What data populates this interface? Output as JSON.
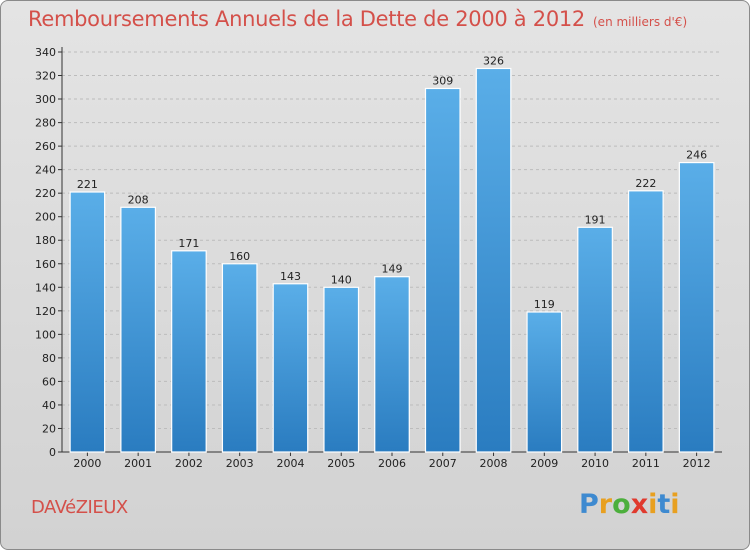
{
  "title": "Remboursements Annuels de la Dette de 2000 à 2012",
  "unit_note": "(en milliers d'€)",
  "commune": "DAVéZIEUX",
  "logo": {
    "p": "P",
    "r": "r",
    "o": "o",
    "x": "x",
    "i": "i",
    "t": "t",
    "i2": "i"
  },
  "colors": {
    "title": "#d4504a",
    "bar_top": "#5aaee8",
    "bar_bottom": "#2a7cc0",
    "background": "#dcdcdc"
  },
  "chart_data": {
    "type": "bar",
    "categories": [
      "2000",
      "2001",
      "2002",
      "2003",
      "2004",
      "2005",
      "2006",
      "2007",
      "2008",
      "2009",
      "2010",
      "2011",
      "2012"
    ],
    "values": [
      221,
      208,
      171,
      160,
      143,
      140,
      149,
      309,
      326,
      119,
      191,
      222,
      246
    ],
    "ylim": [
      0,
      340
    ],
    "yticks": [
      0,
      20,
      40,
      60,
      80,
      100,
      120,
      140,
      160,
      180,
      200,
      220,
      240,
      260,
      280,
      300,
      320,
      340
    ],
    "grid": true,
    "legend": "none"
  }
}
